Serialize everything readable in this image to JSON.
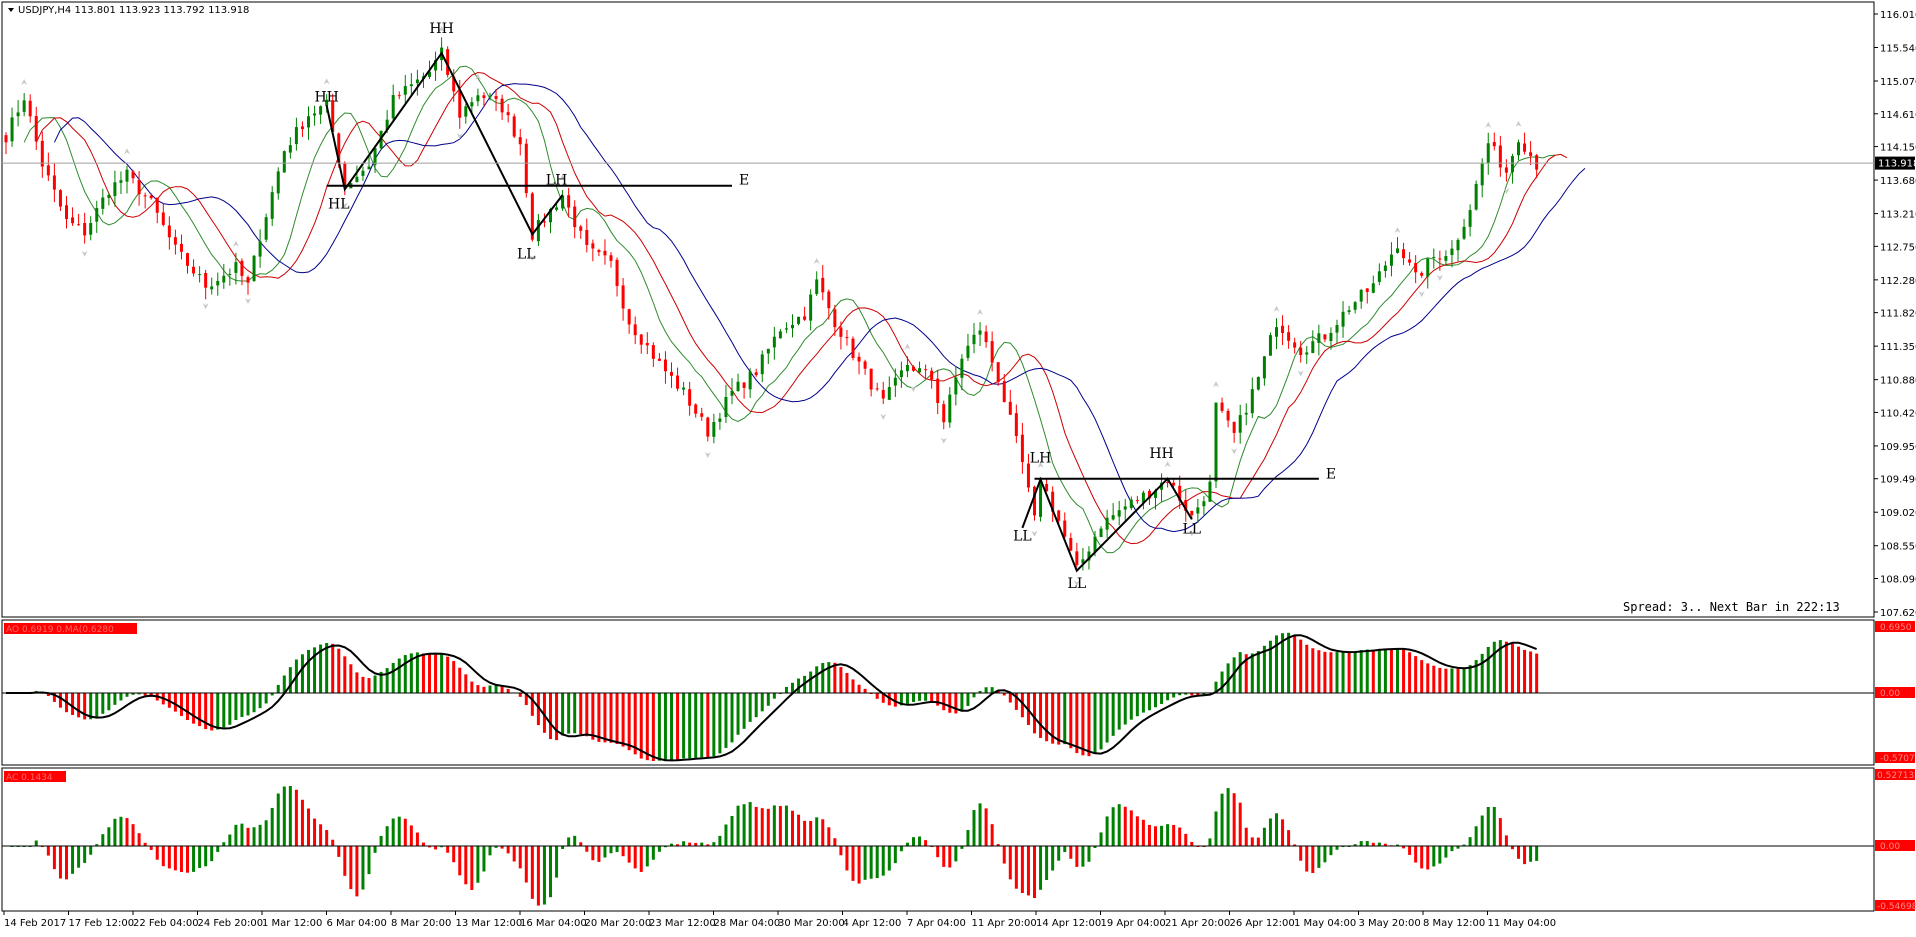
{
  "header": {
    "symbol_info": "USDJPY,H4  113.801 113.923 113.792 113.918"
  },
  "status": {
    "spread_text": "Spread: 3.. Next Bar in 222:13"
  },
  "colors": {
    "bull": "#008000",
    "bear": "#ff0000",
    "ma_green": "#2e8b2e",
    "ma_red": "#cc0000",
    "ma_blue": "#00008b",
    "label_bg": "#ff0000",
    "price_label_bg": "#000000"
  },
  "price_axis": {
    "ticks": [
      "116.010",
      "115.540",
      "115.070",
      "114.610",
      "114.150",
      "113.680",
      "113.210",
      "112.750",
      "112.280",
      "111.820",
      "111.350",
      "110.880",
      "110.420",
      "109.950",
      "109.490",
      "109.020",
      "108.550",
      "108.090",
      "107.620"
    ],
    "current_price": "113.918",
    "min": 107.62,
    "max": 116.01
  },
  "ao_panel": {
    "label": "AO 0.6919 0.MA(0.6280",
    "axis_top": "0.6950",
    "axis_zero": "0.00",
    "axis_bottom": "-0.5707"
  },
  "ac_panel": {
    "label": "AC 0.1434",
    "axis_top": "0.52713",
    "axis_zero": "0.00",
    "axis_bottom": "-0.54698"
  },
  "time_axis": {
    "labels": [
      "14 Feb 2017",
      "17 Feb 12:00",
      "22 Feb 04:00",
      "24 Feb 20:00",
      "1 Mar 12:00",
      "6 Mar 04:00",
      "8 Mar 20:00",
      "13 Mar 12:00",
      "16 Mar 04:00",
      "20 Mar 20:00",
      "23 Mar 12:00",
      "28 Mar 04:00",
      "30 Mar 20:00",
      "4 Apr 12:00",
      "7 Apr 04:00",
      "11 Apr 20:00",
      "14 Apr 12:00",
      "19 Apr 04:00",
      "21 Apr 20:00",
      "26 Apr 12:00",
      "1 May 04:00",
      "3 May 20:00",
      "8 May 12:00",
      "11 May 04:00"
    ]
  },
  "annotations": {
    "labels": [
      {
        "text": "HH",
        "price": 114.78,
        "bar": 53
      },
      {
        "text": "HL",
        "price": 113.28,
        "bar": 55
      },
      {
        "text": "HH",
        "price": 115.74,
        "bar": 72
      },
      {
        "text": "LL",
        "price": 112.58,
        "bar": 86
      },
      {
        "text": "LH",
        "price": 113.62,
        "bar": 91
      },
      {
        "text": "E",
        "price": 113.62,
        "bar": 122
      },
      {
        "text": "LH",
        "price": 109.72,
        "bar": 171
      },
      {
        "text": "LL",
        "price": 108.62,
        "bar": 168
      },
      {
        "text": "LL",
        "price": 107.96,
        "bar": 177
      },
      {
        "text": "HH",
        "price": 109.78,
        "bar": 191
      },
      {
        "text": "LL",
        "price": 108.72,
        "bar": 196
      },
      {
        "text": "E",
        "price": 109.49,
        "bar": 219
      }
    ],
    "zigzag_1": [
      {
        "bar": 53,
        "price": 114.73
      },
      {
        "bar": 56,
        "price": 113.55
      },
      {
        "bar": 72,
        "price": 115.46
      },
      {
        "bar": 87,
        "price": 112.92
      },
      {
        "bar": 92,
        "price": 113.47
      }
    ],
    "zigzag_2": [
      {
        "bar": 168,
        "price": 108.8
      },
      {
        "bar": 171,
        "price": 109.48
      },
      {
        "bar": 177,
        "price": 108.2
      },
      {
        "bar": 192,
        "price": 109.49
      },
      {
        "bar": 196,
        "price": 108.92
      }
    ],
    "line_1": {
      "bar_start": 53,
      "bar_end": 120,
      "price": 113.6
    },
    "line_2": {
      "bar_start": 170,
      "bar_end": 217,
      "price": 109.49
    }
  },
  "chart_data": {
    "type": "candlestick",
    "symbol": "USDJPY",
    "timeframe": "H4",
    "ylim": [
      107.62,
      116.01
    ],
    "close_path": [
      {
        "bar": 0,
        "price": 114.3
      },
      {
        "bar": 3,
        "price": 114.85
      },
      {
        "bar": 6,
        "price": 113.9
      },
      {
        "bar": 10,
        "price": 113.1
      },
      {
        "bar": 13,
        "price": 112.95
      },
      {
        "bar": 17,
        "price": 113.55
      },
      {
        "bar": 20,
        "price": 113.75
      },
      {
        "bar": 24,
        "price": 113.35
      },
      {
        "bar": 28,
        "price": 112.7
      },
      {
        "bar": 33,
        "price": 112.2
      },
      {
        "bar": 38,
        "price": 112.45
      },
      {
        "bar": 40,
        "price": 112.2
      },
      {
        "bar": 42,
        "price": 112.9
      },
      {
        "bar": 46,
        "price": 114.1
      },
      {
        "bar": 50,
        "price": 114.6
      },
      {
        "bar": 53,
        "price": 114.73
      },
      {
        "bar": 56,
        "price": 113.6
      },
      {
        "bar": 60,
        "price": 113.9
      },
      {
        "bar": 64,
        "price": 114.8
      },
      {
        "bar": 70,
        "price": 115.2
      },
      {
        "bar": 72,
        "price": 115.46
      },
      {
        "bar": 75,
        "price": 114.6
      },
      {
        "bar": 78,
        "price": 114.9
      },
      {
        "bar": 82,
        "price": 114.7
      },
      {
        "bar": 85,
        "price": 114.2
      },
      {
        "bar": 87,
        "price": 112.92
      },
      {
        "bar": 92,
        "price": 113.47
      },
      {
        "bar": 96,
        "price": 112.7
      },
      {
        "bar": 100,
        "price": 112.5
      },
      {
        "bar": 103,
        "price": 111.7
      },
      {
        "bar": 108,
        "price": 111.1
      },
      {
        "bar": 112,
        "price": 110.7
      },
      {
        "bar": 116,
        "price": 110.15
      },
      {
        "bar": 120,
        "price": 110.7
      },
      {
        "bar": 124,
        "price": 111.0
      },
      {
        "bar": 128,
        "price": 111.6
      },
      {
        "bar": 132,
        "price": 111.8
      },
      {
        "bar": 134,
        "price": 112.25
      },
      {
        "bar": 137,
        "price": 111.7
      },
      {
        "bar": 141,
        "price": 111.1
      },
      {
        "bar": 145,
        "price": 110.55
      },
      {
        "bar": 149,
        "price": 111.1
      },
      {
        "bar": 153,
        "price": 110.9
      },
      {
        "bar": 155,
        "price": 110.3
      },
      {
        "bar": 158,
        "price": 111.2
      },
      {
        "bar": 161,
        "price": 111.6
      },
      {
        "bar": 164,
        "price": 110.9
      },
      {
        "bar": 168,
        "price": 109.7
      },
      {
        "bar": 170,
        "price": 108.9
      },
      {
        "bar": 171,
        "price": 109.48
      },
      {
        "bar": 174,
        "price": 108.9
      },
      {
        "bar": 177,
        "price": 108.2
      },
      {
        "bar": 181,
        "price": 108.85
      },
      {
        "bar": 185,
        "price": 109.1
      },
      {
        "bar": 189,
        "price": 109.3
      },
      {
        "bar": 192,
        "price": 109.49
      },
      {
        "bar": 196,
        "price": 108.95
      },
      {
        "bar": 199,
        "price": 109.4
      },
      {
        "bar": 200,
        "price": 110.5
      },
      {
        "bar": 203,
        "price": 110.1
      },
      {
        "bar": 207,
        "price": 110.9
      },
      {
        "bar": 210,
        "price": 111.7
      },
      {
        "bar": 214,
        "price": 111.3
      },
      {
        "bar": 218,
        "price": 111.5
      },
      {
        "bar": 222,
        "price": 111.9
      },
      {
        "bar": 226,
        "price": 112.2
      },
      {
        "bar": 230,
        "price": 112.8
      },
      {
        "bar": 233,
        "price": 112.3
      },
      {
        "bar": 236,
        "price": 112.6
      },
      {
        "bar": 239,
        "price": 112.7
      },
      {
        "bar": 242,
        "price": 113.3
      },
      {
        "bar": 245,
        "price": 114.2
      },
      {
        "bar": 248,
        "price": 113.8
      },
      {
        "bar": 250,
        "price": 114.3
      },
      {
        "bar": 253,
        "price": 113.9
      }
    ],
    "bars_total": 254
  }
}
